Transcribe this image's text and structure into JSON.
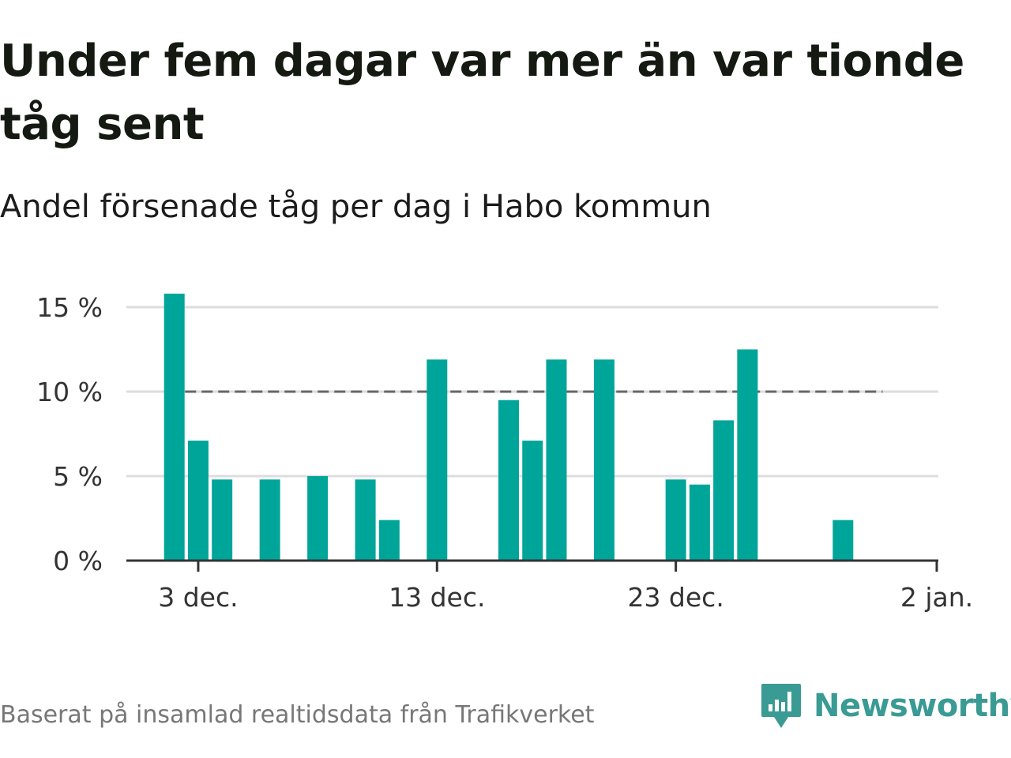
{
  "header": {
    "title": "Under fem dagar var mer än var tionde tåg sent",
    "subtitle": "Andel försenade tåg per dag i Habo kommun"
  },
  "footer": {
    "source": "Baserat på insamlad realtidsdata från Trafikverket",
    "brand_name": "Newsworthy",
    "brand_logo_icon": "newsworthy-bar-chart-logo"
  },
  "colors": {
    "bar": "#00a59a",
    "reference_line": "#666666",
    "grid": "#dddddd",
    "axis": "#333333",
    "brand": "#3a9a94"
  },
  "chart_data": {
    "type": "bar",
    "title": "Under fem dagar var mer än var tionde tåg sent",
    "subtitle": "Andel försenade tåg per dag i Habo kommun",
    "xlabel": "",
    "ylabel": "",
    "x_unit": "date",
    "x_ticks": [
      {
        "value": "2023-12-03",
        "label": "3 dec."
      },
      {
        "value": "2023-12-13",
        "label": "13 dec."
      },
      {
        "value": "2023-12-23",
        "label": "23 dec."
      },
      {
        "value": "2024-01-02",
        "label": "2 jan."
      }
    ],
    "y_ticks": [
      {
        "value": 0,
        "label": "0 %"
      },
      {
        "value": 5,
        "label": "5 %"
      },
      {
        "value": 10,
        "label": "10 %"
      },
      {
        "value": 15,
        "label": "15 %"
      }
    ],
    "xlim": [
      "2023-11-29",
      "2024-01-02"
    ],
    "ylim": [
      0,
      15
    ],
    "grid": true,
    "reference_line": {
      "y": 10,
      "from": "2023-11-30",
      "to": "2023-12-31",
      "style": "dashed"
    },
    "series": [
      {
        "points": [
          {
            "date": "2023-12-02",
            "value": 15.8
          },
          {
            "date": "2023-12-03",
            "value": 7.1
          },
          {
            "date": "2023-12-04",
            "value": 4.8
          },
          {
            "date": "2023-12-06",
            "value": 4.8
          },
          {
            "date": "2023-12-08",
            "value": 5.0
          },
          {
            "date": "2023-12-10",
            "value": 4.8
          },
          {
            "date": "2023-12-11",
            "value": 2.4
          },
          {
            "date": "2023-12-13",
            "value": 11.9
          },
          {
            "date": "2023-12-16",
            "value": 9.5
          },
          {
            "date": "2023-12-17",
            "value": 7.1
          },
          {
            "date": "2023-12-18",
            "value": 11.9
          },
          {
            "date": "2023-12-20",
            "value": 11.9
          },
          {
            "date": "2023-12-23",
            "value": 4.8
          },
          {
            "date": "2023-12-24",
            "value": 4.5
          },
          {
            "date": "2023-12-25",
            "value": 8.3
          },
          {
            "date": "2023-12-26",
            "value": 12.5
          },
          {
            "date": "2023-12-30",
            "value": 2.4
          }
        ]
      }
    ]
  }
}
